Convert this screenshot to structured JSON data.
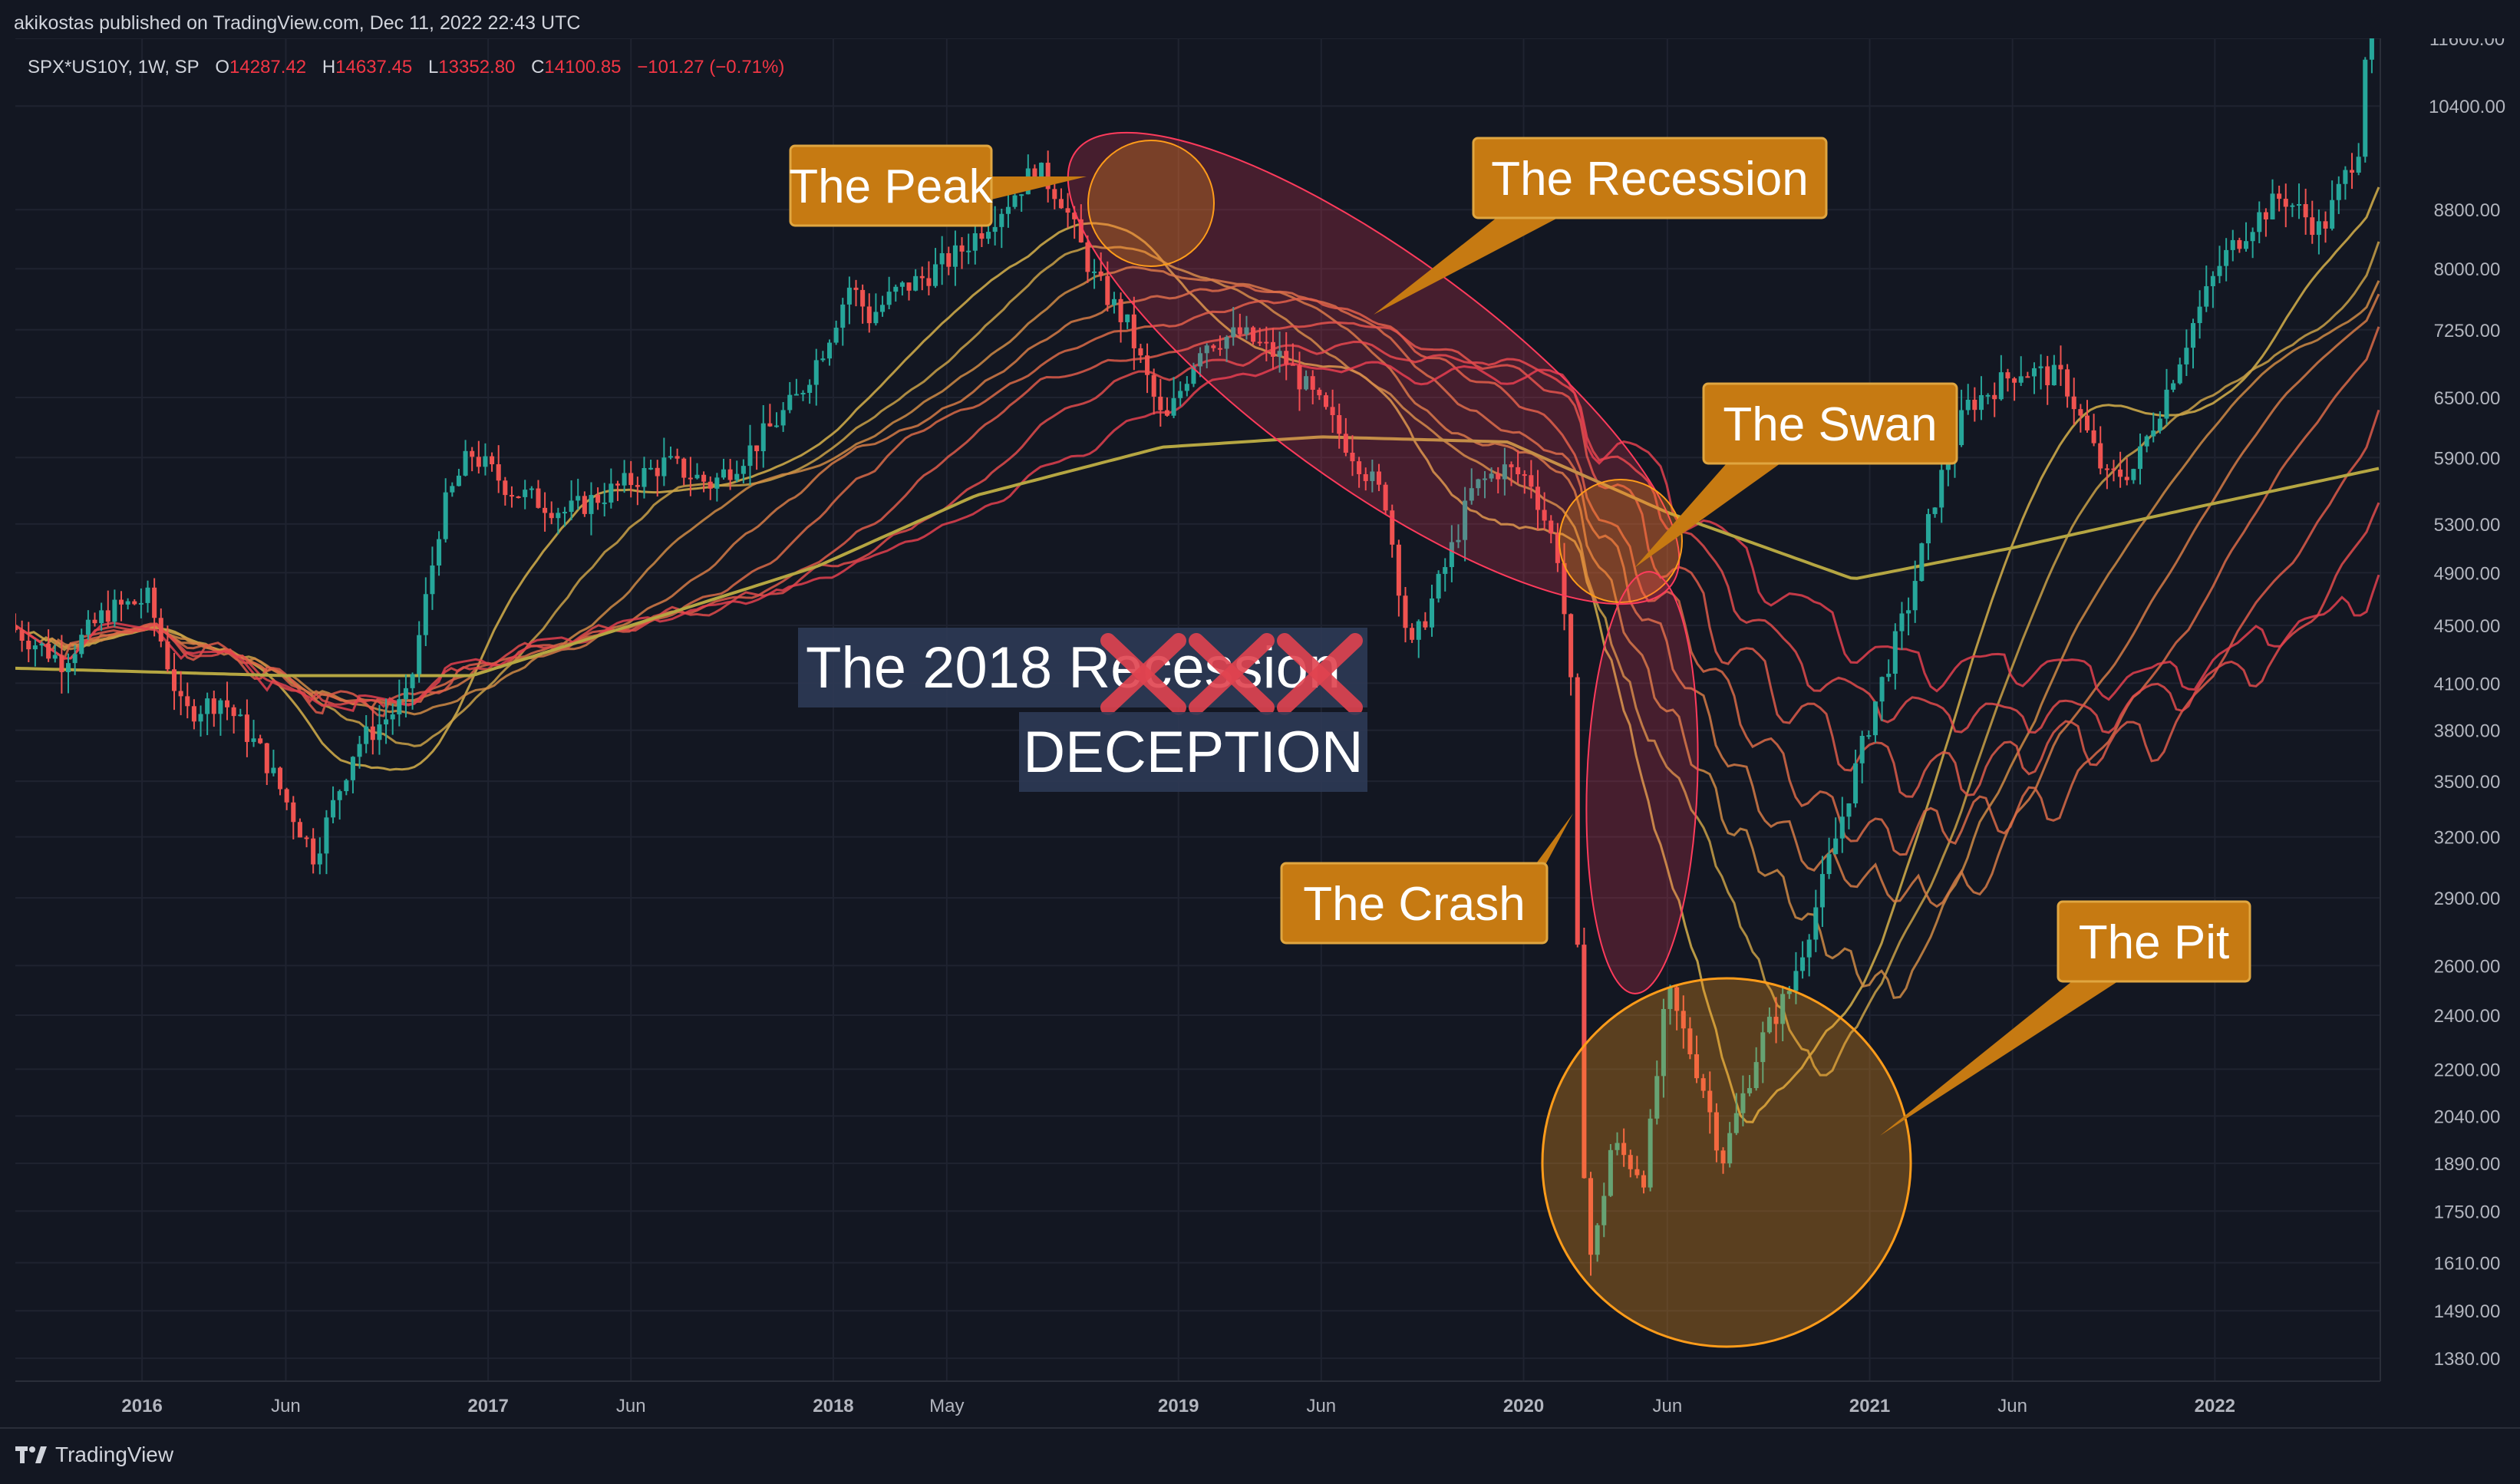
{
  "header": {
    "published_line": "akikostas published on TradingView.com, Dec 11, 2022 22:43 UTC"
  },
  "legend": {
    "symbol": "SPX*US10Y, 1W, SP",
    "o_label": "O",
    "o_value": "14287.42",
    "h_label": "H",
    "h_value": "14637.45",
    "l_label": "L",
    "l_value": "13352.80",
    "c_label": "C",
    "c_value": "14100.85",
    "change": "−101.27 (−0.71%)"
  },
  "footer": {
    "brand": "TradingView"
  },
  "colors": {
    "background": "#131722",
    "grid": "#1f2330",
    "up": "#26a69a",
    "down": "#ef5350",
    "long_ma": "#b5a642",
    "callout_fill": "#c67a12",
    "callout_border": "#e0a640",
    "recession_ellipse": "#ff3b5c",
    "swan_circle": "#ff9c1a",
    "label_box": "#2d3a55"
  },
  "chart_data": {
    "type": "candlestick",
    "title": "",
    "xlabel": "",
    "ylabel": "",
    "scale": "log",
    "ylim": [
      1330,
      11600
    ],
    "grid": true,
    "x_ticks": [
      "2016",
      "Jun",
      "2017",
      "Jun",
      "2018",
      "May",
      "2019",
      "Jun",
      "2020",
      "Jun",
      "2021",
      "Jun",
      "2022"
    ],
    "x_tick_dates": [
      "2016-01-01",
      "2016-06-01",
      "2017-01-01",
      "2017-06-01",
      "2018-01-01",
      "2018-05-01",
      "2019-01-01",
      "2019-06-01",
      "2020-01-01",
      "2020-06-01",
      "2021-01-01",
      "2021-06-01",
      "2022-01-01"
    ],
    "x_range": [
      "2015-08-20",
      "2022-06-25"
    ],
    "y_ticks": [
      "11600.00",
      "10400.00",
      "8800.00",
      "8000.00",
      "7250.00",
      "6500.00",
      "5900.00",
      "5300.00",
      "4900.00",
      "4500.00",
      "4100.00",
      "3800.00",
      "3500.00",
      "3200.00",
      "2900.00",
      "2600.00",
      "2400.00",
      "2200.00",
      "2040.00",
      "1890.00",
      "1750.00",
      "1610.00",
      "1490.00",
      "1380.00"
    ],
    "price_series": [
      [
        "2015-08-20",
        4500
      ],
      [
        "2015-10-15",
        4250
      ],
      [
        "2015-12-01",
        4600
      ],
      [
        "2016-01-15",
        4700
      ],
      [
        "2016-02-20",
        3900
      ],
      [
        "2016-04-01",
        4000
      ],
      [
        "2016-05-15",
        3650
      ],
      [
        "2016-07-08",
        3100
      ],
      [
        "2016-08-20",
        3700
      ],
      [
        "2016-10-15",
        4000
      ],
      [
        "2016-11-20",
        5400
      ],
      [
        "2016-12-20",
        5950
      ],
      [
        "2017-02-01",
        5600
      ],
      [
        "2017-04-01",
        5400
      ],
      [
        "2017-06-01",
        5650
      ],
      [
        "2017-07-15",
        5850
      ],
      [
        "2017-09-01",
        5650
      ],
      [
        "2017-10-15",
        6000
      ],
      [
        "2017-12-01",
        6500
      ],
      [
        "2017-12-31",
        7100
      ],
      [
        "2018-01-26",
        7800
      ],
      [
        "2018-02-15",
        7400
      ],
      [
        "2018-03-15",
        7700
      ],
      [
        "2018-04-15",
        7900
      ],
      [
        "2018-05-20",
        8200
      ],
      [
        "2018-07-10",
        8900
      ],
      [
        "2018-08-10",
        9400
      ],
      [
        "2018-09-05",
        9000
      ],
      [
        "2018-10-10",
        7900
      ],
      [
        "2018-11-15",
        7300
      ],
      [
        "2018-12-24",
        6200
      ],
      [
        "2019-02-01",
        7100
      ],
      [
        "2019-03-15",
        7200
      ],
      [
        "2019-05-01",
        6900
      ],
      [
        "2019-06-15",
        6300
      ],
      [
        "2019-07-15",
        5900
      ],
      [
        "2019-08-15",
        5500
      ],
      [
        "2019-09-10",
        4300
      ],
      [
        "2019-10-15",
        4900
      ],
      [
        "2019-11-15",
        5600
      ],
      [
        "2019-12-15",
        5800
      ],
      [
        "2020-01-15",
        5700
      ],
      [
        "2020-02-15",
        5000
      ],
      [
        "2020-02-28",
        4000
      ],
      [
        "2020-03-09",
        2000
      ],
      [
        "2020-03-20",
        1600
      ],
      [
        "2020-04-10",
        1950
      ],
      [
        "2020-05-15",
        1850
      ],
      [
        "2020-06-08",
        2500
      ],
      [
        "2020-07-15",
        2150
      ],
      [
        "2020-08-05",
        1900
      ],
      [
        "2020-09-15",
        2300
      ],
      [
        "2020-10-15",
        2500
      ],
      [
        "2020-11-15",
        2900
      ],
      [
        "2020-12-15",
        3400
      ],
      [
        "2021-01-15",
        4000
      ],
      [
        "2021-02-20",
        4700
      ],
      [
        "2021-03-20",
        5600
      ],
      [
        "2021-04-20",
        6400
      ],
      [
        "2021-06-15",
        6800
      ],
      [
        "2021-08-01",
        6700
      ],
      [
        "2021-09-15",
        5700
      ],
      [
        "2021-10-15",
        5800
      ],
      [
        "2021-11-15",
        6500
      ],
      [
        "2021-12-15",
        7300
      ],
      [
        "2022-01-15",
        8100
      ],
      [
        "2022-02-15",
        8600
      ],
      [
        "2022-03-20",
        9000
      ],
      [
        "2022-05-01",
        8500
      ],
      [
        "2022-06-10",
        9800
      ],
      [
        "2022-06-25",
        14100
      ]
    ],
    "moving_average_long": [
      [
        "2015-08-20",
        4200
      ],
      [
        "2016-06-01",
        4150
      ],
      [
        "2016-12-15",
        4150
      ],
      [
        "2017-06-01",
        4500
      ],
      [
        "2017-12-15",
        4950
      ],
      [
        "2018-06-01",
        5550
      ],
      [
        "2018-12-15",
        6000
      ],
      [
        "2019-06-01",
        6100
      ],
      [
        "2019-12-15",
        6050
      ],
      [
        "2020-06-01",
        5400
      ],
      [
        "2020-12-15",
        4850
      ],
      [
        "2021-06-01",
        5100
      ],
      [
        "2021-12-15",
        5450
      ],
      [
        "2022-06-25",
        5800
      ]
    ],
    "annotations": [
      {
        "text": "The Peak"
      },
      {
        "text": "The Recession"
      },
      {
        "text": "The Swan"
      },
      {
        "text": "The Crash"
      },
      {
        "text": "The Pit"
      },
      {
        "text": "The 2018 Recession"
      },
      {
        "text": "DECEPTION"
      }
    ]
  }
}
